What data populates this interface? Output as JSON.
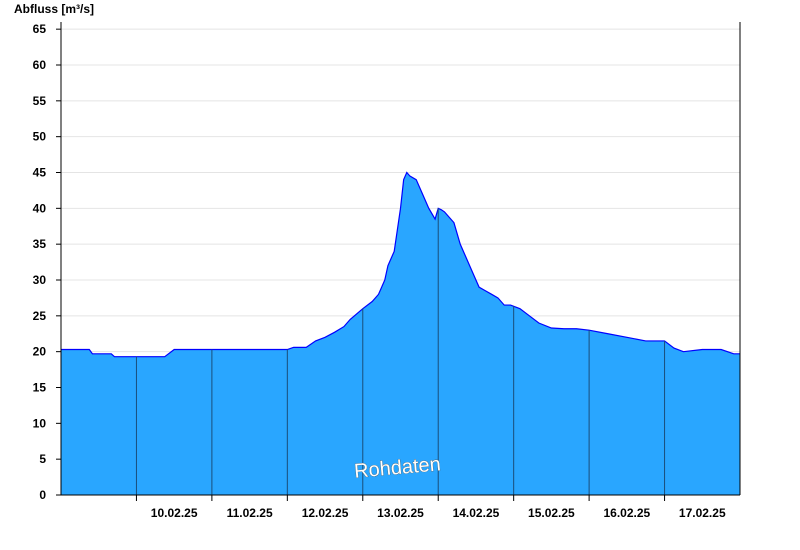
{
  "chart_data": {
    "type": "area",
    "ylabel": "Abfluss [m³/s]",
    "ylim": [
      0,
      66
    ],
    "yticks": [
      0,
      5,
      10,
      15,
      20,
      25,
      30,
      35,
      40,
      45,
      50,
      55,
      60,
      65
    ],
    "x_start": "09.02.25 00:00",
    "x_end": "17.02.25 24:00",
    "xtick_labels": [
      "10.02.25",
      "11.02.25",
      "12.02.25",
      "13.02.25",
      "14.02.25",
      "15.02.25",
      "16.02.25",
      "17.02.25"
    ],
    "grid": "horizontal",
    "watermark": "Rohdaten",
    "fill_color": "#29a6ff",
    "line_color": "#0000ff",
    "series": [
      {
        "x": [
          "09.02.25 00:00",
          "09.02.25 09:00",
          "09.02.25 10:00",
          "09.02.25 16:00",
          "09.02.25 17:00",
          "09.02.25 20:00",
          "10.02.25 00:00",
          "10.02.25 09:00",
          "10.02.25 12:00",
          "10.02.25 15:00",
          "11.02.25 00:00",
          "11.02.25 12:00",
          "11.02.25 16:00",
          "11.02.25 20:00",
          "12.02.25 00:00",
          "12.02.25 02:00",
          "12.02.25 06:00",
          "12.02.25 09:00",
          "12.02.25 12:00",
          "12.02.25 15:00",
          "12.02.25 18:00",
          "12.02.25 20:00",
          "13.02.25 00:00",
          "13.02.25 03:00",
          "13.02.25 05:00",
          "13.02.25 07:00",
          "13.02.25 08:00",
          "13.02.25 09:00",
          "13.02.25 10:00",
          "13.02.25 11:00",
          "13.02.25 12:00",
          "13.02.25 13:00",
          "13.02.25 14:00",
          "13.02.25 15:00",
          "13.02.25 17:00",
          "13.02.25 19:00",
          "13.02.25 21:00",
          "13.02.25 23:00",
          "14.02.25 00:00",
          "14.02.25 01:00",
          "14.02.25 02:00",
          "14.02.25 03:00",
          "14.02.25 05:00",
          "14.02.25 06:00",
          "14.02.25 07:00",
          "14.02.25 09:00",
          "14.02.25 11:00",
          "14.02.25 13:00",
          "14.02.25 15:00",
          "14.02.25 17:00",
          "14.02.25 19:00",
          "14.02.25 21:00",
          "14.02.25 23:00",
          "15.02.25 02:00",
          "15.02.25 05:00",
          "15.02.25 08:00",
          "15.02.25 12:00",
          "15.02.25 16:00",
          "15.02.25 20:00",
          "16.02.25 00:00",
          "16.02.25 06:00",
          "16.02.25 12:00",
          "16.02.25 18:00",
          "17.02.25 00:00",
          "17.02.25 03:00",
          "17.02.25 06:00",
          "17.02.25 12:00",
          "17.02.25 18:00",
          "17.02.25 22:00",
          "17.02.25 24:00"
        ],
        "y": [
          20.3,
          20.3,
          19.7,
          19.7,
          19.3,
          19.3,
          19.3,
          19.3,
          20.3,
          20.3,
          20.3,
          20.3,
          20.3,
          20.3,
          20.3,
          20.6,
          20.6,
          21.5,
          22,
          22.7,
          23.5,
          24.5,
          26,
          27,
          28,
          30,
          32,
          33,
          34,
          37,
          40,
          44,
          45,
          44.5,
          44,
          42,
          40,
          38.5,
          40,
          39.8,
          39.5,
          39,
          38,
          36.5,
          35,
          33,
          31,
          29,
          28.5,
          28,
          27.5,
          26.5,
          26.5,
          26,
          25,
          24,
          23.3,
          23.2,
          23.2,
          23,
          22.5,
          22,
          21.5,
          21.5,
          20.5,
          20,
          20.3,
          20.3,
          19.7,
          19.7
        ]
      }
    ]
  }
}
